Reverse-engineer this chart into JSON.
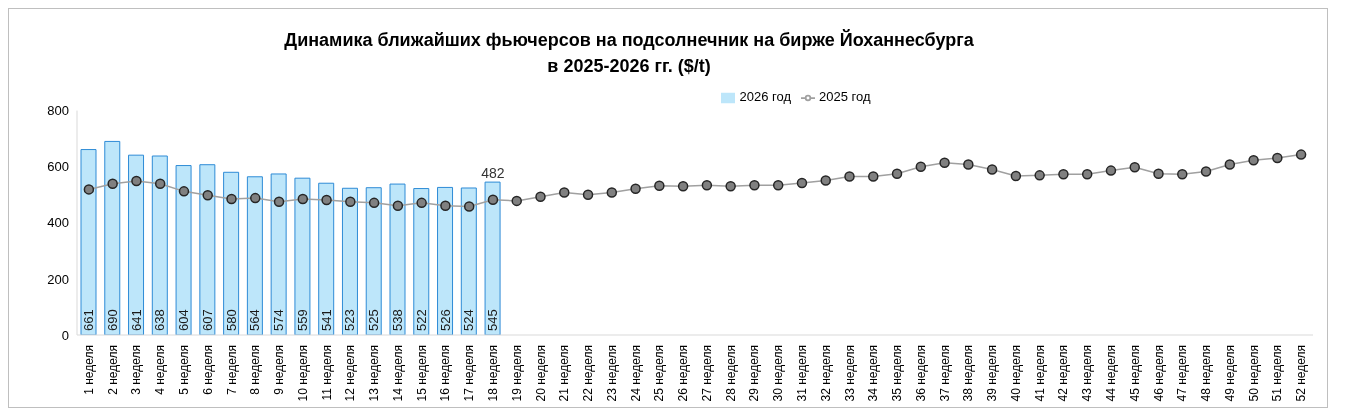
{
  "chart_data": {
    "type": "bar",
    "title": "Динамика ближайших фьючерсов на подсолнечник на бирже Йоханнесбурга\nв 2025-2026 гг. ($/t)",
    "categories": [
      "1 неделя",
      "2 неделя",
      "3 неделя",
      "4 неделя",
      "5 неделя",
      "6 неделя",
      "7 неделя",
      "8 неделя",
      "9 неделя",
      "10 неделя",
      "11 неделя",
      "12 неделя",
      "13 неделя",
      "14 неделя",
      "15 неделя",
      "16 неделя",
      "17 неделя",
      "18 неделя",
      "19 неделя",
      "20 неделя",
      "21 неделя",
      "22 неделя",
      "23 неделя",
      "24 неделя",
      "25 неделя",
      "26 неделя",
      "27 неделя",
      "28 неделя",
      "29 неделя",
      "30 неделя",
      "31 неделя",
      "32 неделя",
      "33 неделя",
      "34 неделя",
      "35 неделя",
      "36 неделя",
      "37 неделя",
      "38 неделя",
      "39 неделя",
      "40 неделя",
      "41 неделя",
      "42 неделя",
      "43 неделя",
      "44 неделя",
      "45 неделя",
      "46 неделя",
      "47 неделя",
      "48 неделя",
      "49 неделя",
      "50 неделя",
      "51 неделя",
      "52 неделя"
    ],
    "series": [
      {
        "name": "2026 год",
        "color": "#bde6fa",
        "data_labels": true,
        "values": [
          661,
          690,
          641,
          638,
          604,
          607,
          580,
          564,
          574,
          559,
          541,
          523,
          525,
          538,
          522,
          526,
          524,
          545,
          null,
          null,
          null,
          null,
          null,
          null,
          null,
          null,
          null,
          null,
          null,
          null,
          null,
          null,
          null,
          null,
          null,
          null,
          null,
          null,
          null,
          null,
          null,
          null,
          null,
          null,
          null,
          null,
          null,
          null,
          null,
          null,
          null,
          null
        ]
      },
      {
        "name": "2025 год",
        "type": "line",
        "color": "#808080",
        "marker": "circle",
        "values": [
          519,
          539,
          549,
          539,
          512,
          498,
          485,
          488,
          475,
          485,
          481,
          475,
          471,
          461,
          471,
          461,
          458,
          482,
          478,
          493,
          508,
          500,
          508,
          521,
          532,
          530,
          534,
          530,
          534,
          534,
          542,
          551,
          565,
          565,
          575,
          600,
          614,
          608,
          590,
          567,
          569,
          573,
          573,
          586,
          598,
          575,
          573,
          583,
          608,
          623,
          631,
          643
        ],
        "value_labels": [
          null,
          null,
          null,
          null,
          null,
          null,
          null,
          null,
          null,
          null,
          null,
          null,
          null,
          null,
          null,
          null,
          null,
          "482",
          null,
          null,
          null,
          null,
          null,
          null,
          null,
          null,
          null,
          null,
          null,
          null,
          null,
          null,
          null,
          null,
          null,
          null,
          null,
          null,
          null,
          null,
          null,
          null,
          null,
          null,
          null,
          null,
          null,
          null,
          null,
          null,
          null,
          null
        ]
      }
    ],
    "ylim": [
      0,
      800
    ],
    "yticks": [
      0,
      200,
      400,
      600,
      800
    ],
    "grid": false,
    "legend": "top"
  }
}
